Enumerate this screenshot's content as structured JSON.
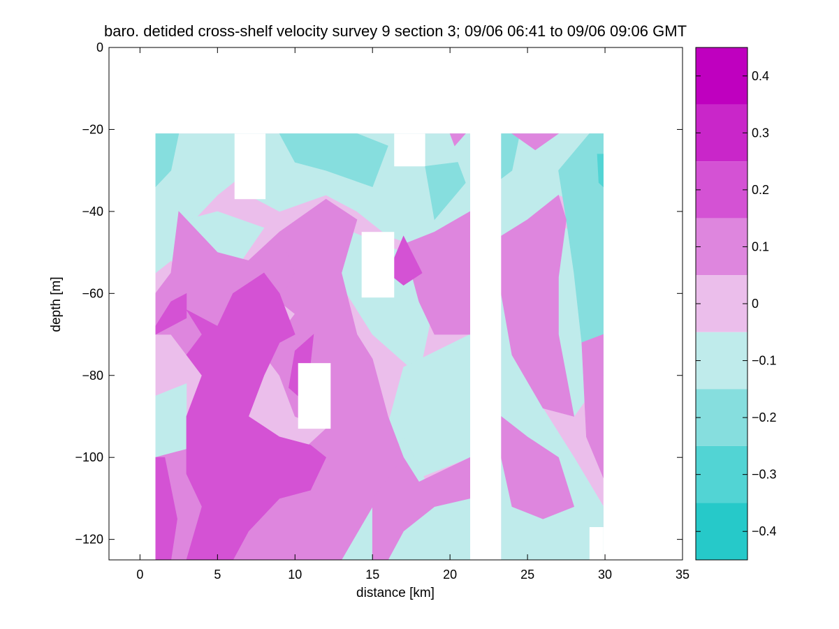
{
  "chart_data": {
    "type": "heatmap",
    "title": "baro. detided cross-shelf velocity survey 9 section 3; 09/06 06:41 to 09/06 09:06 GMT",
    "xlabel": "distance [km]",
    "ylabel": "depth [m]",
    "xlim": [
      -2,
      35
    ],
    "ylim": [
      -125,
      0
    ],
    "x_ticks": [
      0,
      5,
      10,
      15,
      20,
      25,
      30,
      35
    ],
    "y_ticks": [
      0,
      -20,
      -40,
      -60,
      -80,
      -100,
      -120
    ],
    "colorbar": {
      "range": [
        -0.45,
        0.45
      ],
      "ticks": [
        0.4,
        0.3,
        0.2,
        0.1,
        0,
        -0.1,
        -0.2,
        -0.3,
        -0.4
      ],
      "levels": [
        {
          "from": 0.35,
          "to": 0.45,
          "color": "#bf00bf"
        },
        {
          "from": 0.25,
          "to": 0.35,
          "color": "#c926c9"
        },
        {
          "from": 0.15,
          "to": 0.25,
          "color": "#d452d4"
        },
        {
          "from": 0.05,
          "to": 0.15,
          "color": "#de86de"
        },
        {
          "from": -0.05,
          "to": 0.05,
          "color": "#ebbeeb"
        },
        {
          "from": -0.15,
          "to": -0.05,
          "color": "#bfebeb"
        },
        {
          "from": -0.25,
          "to": -0.15,
          "color": "#86dede"
        },
        {
          "from": -0.35,
          "to": -0.25,
          "color": "#52d4d4"
        },
        {
          "from": -0.45,
          "to": -0.35,
          "color": "#26c9c9"
        }
      ]
    },
    "data_sections": [
      {
        "x": [
          1,
          21.3
        ],
        "y": [
          -125,
          -21
        ]
      },
      {
        "x": [
          23.3,
          29.9
        ],
        "y": [
          -125,
          -21
        ]
      }
    ],
    "gaps": [
      {
        "x": [
          6.1,
          8.1
        ],
        "y": [
          -37,
          -21
        ]
      },
      {
        "x": [
          16.4,
          18.4
        ],
        "y": [
          -29,
          -21
        ]
      },
      {
        "x": [
          14.3,
          16.4
        ],
        "y": [
          -61,
          -45
        ]
      },
      {
        "x": [
          10.2,
          12.3
        ],
        "y": [
          -93,
          -77
        ]
      },
      {
        "x": [
          29.0,
          29.9
        ],
        "y": [
          -125,
          -117
        ]
      }
    ],
    "regions": [
      {
        "level": -0.1,
        "points": [
          [
            1,
            -21
          ],
          [
            6,
            -21
          ],
          [
            7,
            -30
          ],
          [
            5,
            -36
          ],
          [
            3,
            -44
          ],
          [
            1,
            -45
          ]
        ]
      },
      {
        "level": -0.1,
        "points": [
          [
            6,
            -21
          ],
          [
            21.3,
            -21
          ],
          [
            21.3,
            -55
          ],
          [
            19,
            -50
          ],
          [
            16,
            -46
          ],
          [
            14,
            -40
          ],
          [
            12,
            -36
          ],
          [
            9,
            -40
          ],
          [
            7,
            -36
          ]
        ]
      },
      {
        "level": -0.1,
        "points": [
          [
            1,
            -44
          ],
          [
            5,
            -40
          ],
          [
            8,
            -44
          ],
          [
            6,
            -55
          ],
          [
            4,
            -58
          ],
          [
            2,
            -52
          ],
          [
            1,
            -55
          ]
        ]
      },
      {
        "level": -0.1,
        "points": [
          [
            13,
            -44
          ],
          [
            17,
            -50
          ],
          [
            19,
            -62
          ],
          [
            18,
            -80
          ],
          [
            15,
            -70
          ],
          [
            13,
            -58
          ]
        ]
      },
      {
        "level": -0.1,
        "points": [
          [
            17,
            -78
          ],
          [
            21.3,
            -70
          ],
          [
            21.3,
            -100
          ],
          [
            18,
            -105
          ],
          [
            16,
            -92
          ]
        ]
      },
      {
        "level": -0.1,
        "points": [
          [
            13,
            -125
          ],
          [
            15,
            -110
          ],
          [
            17,
            -95
          ],
          [
            19,
            -110
          ],
          [
            21.3,
            -105
          ],
          [
            21.3,
            -125
          ]
        ]
      },
      {
        "level": -0.1,
        "points": [
          [
            1,
            -85
          ],
          [
            3,
            -82
          ],
          [
            3,
            -98
          ],
          [
            1,
            -100
          ]
        ]
      },
      {
        "level": -0.1,
        "points": [
          [
            23.3,
            -21
          ],
          [
            29.9,
            -21
          ],
          [
            29.9,
            -40
          ],
          [
            27,
            -36
          ],
          [
            25,
            -42
          ],
          [
            23.3,
            -46
          ]
        ]
      },
      {
        "level": -0.1,
        "points": [
          [
            27,
            -44
          ],
          [
            29.9,
            -45
          ],
          [
            29.9,
            -80
          ],
          [
            28,
            -90
          ],
          [
            27,
            -70
          ]
        ]
      },
      {
        "level": -0.1,
        "points": [
          [
            23.3,
            -60
          ],
          [
            24,
            -75
          ],
          [
            26,
            -88
          ],
          [
            28,
            -100
          ],
          [
            29.9,
            -112
          ],
          [
            29.9,
            -125
          ],
          [
            23.3,
            -125
          ]
        ]
      },
      {
        "level": -0.2,
        "points": [
          [
            1,
            -21
          ],
          [
            2.5,
            -21
          ],
          [
            2,
            -30
          ],
          [
            1,
            -34
          ]
        ]
      },
      {
        "level": -0.2,
        "points": [
          [
            9,
            -21
          ],
          [
            14,
            -21
          ],
          [
            16,
            -24
          ],
          [
            15,
            -34
          ],
          [
            12,
            -30
          ],
          [
            10,
            -28
          ]
        ]
      },
      {
        "level": -0.2,
        "points": [
          [
            18.4,
            -29
          ],
          [
            20.5,
            -28
          ],
          [
            21,
            -33
          ],
          [
            19,
            -42
          ]
        ]
      },
      {
        "level": -0.2,
        "points": [
          [
            23.3,
            -21
          ],
          [
            24.5,
            -21
          ],
          [
            24,
            -30
          ],
          [
            23.3,
            -32
          ]
        ]
      },
      {
        "level": -0.2,
        "points": [
          [
            27,
            -30
          ],
          [
            29,
            -21
          ],
          [
            29.9,
            -21
          ],
          [
            29.9,
            -70
          ],
          [
            28.5,
            -72
          ],
          [
            28,
            -55
          ],
          [
            27.5,
            -42
          ]
        ]
      },
      {
        "level": -0.3,
        "points": [
          [
            29.5,
            -26
          ],
          [
            29.9,
            -26
          ],
          [
            29.9,
            -34
          ],
          [
            29.6,
            -33
          ]
        ]
      },
      {
        "level": 0.1,
        "points": [
          [
            2.5,
            -40
          ],
          [
            5,
            -50
          ],
          [
            7,
            -52
          ],
          [
            9,
            -45
          ],
          [
            10,
            -55
          ],
          [
            9,
            -62
          ],
          [
            7,
            -70
          ],
          [
            5,
            -78
          ],
          [
            3,
            -75
          ],
          [
            2,
            -70
          ],
          [
            1,
            -70
          ],
          [
            1,
            -60
          ],
          [
            2,
            -55
          ]
        ]
      },
      {
        "level": 0.1,
        "points": [
          [
            9,
            -45
          ],
          [
            12,
            -37
          ],
          [
            14,
            -42
          ],
          [
            13,
            -55
          ],
          [
            14,
            -70
          ],
          [
            15,
            -76
          ],
          [
            16,
            -90
          ],
          [
            17,
            -100
          ],
          [
            15,
            -112
          ],
          [
            13,
            -125
          ],
          [
            5,
            -125
          ],
          [
            7,
            -110
          ],
          [
            10,
            -100
          ],
          [
            12,
            -93
          ],
          [
            10,
            -90
          ],
          [
            9,
            -80
          ],
          [
            8,
            -75
          ],
          [
            10,
            -65
          ],
          [
            9,
            -62
          ],
          [
            10,
            -55
          ]
        ]
      },
      {
        "level": 0.1,
        "points": [
          [
            17,
            -48
          ],
          [
            19,
            -45
          ],
          [
            21.3,
            -40
          ],
          [
            21.3,
            -70
          ],
          [
            19,
            -70
          ],
          [
            18,
            -62
          ]
        ]
      },
      {
        "level": 0.1,
        "points": [
          [
            15,
            -110
          ],
          [
            17,
            -100
          ],
          [
            18,
            -106
          ],
          [
            21.3,
            -100
          ],
          [
            21.3,
            -110
          ],
          [
            19,
            -112
          ],
          [
            17,
            -118
          ],
          [
            16,
            -125
          ],
          [
            15,
            -125
          ]
        ]
      },
      {
        "level": 0.1,
        "points": [
          [
            1,
            -100
          ],
          [
            3,
            -98
          ],
          [
            4,
            -112
          ],
          [
            3,
            -125
          ],
          [
            1,
            -125
          ]
        ]
      },
      {
        "level": 0.1,
        "points": [
          [
            23.3,
            -46
          ],
          [
            25,
            -42
          ],
          [
            27,
            -36
          ],
          [
            27.5,
            -42
          ],
          [
            27,
            -56
          ],
          [
            27,
            -70
          ],
          [
            28,
            -90
          ],
          [
            26,
            -88
          ],
          [
            24,
            -75
          ],
          [
            23.3,
            -60
          ]
        ]
      },
      {
        "level": 0.1,
        "points": [
          [
            23.3,
            -90
          ],
          [
            25,
            -95
          ],
          [
            27,
            -100
          ],
          [
            28,
            -112
          ],
          [
            26,
            -115
          ],
          [
            24,
            -112
          ],
          [
            23.3,
            -100
          ]
        ]
      },
      {
        "level": 0.1,
        "points": [
          [
            28.5,
            -72
          ],
          [
            29.9,
            -70
          ],
          [
            29.9,
            -105
          ],
          [
            28.8,
            -95
          ]
        ]
      },
      {
        "level": 0.1,
        "points": [
          [
            24,
            -21
          ],
          [
            27,
            -21
          ],
          [
            25.5,
            -25
          ]
        ]
      },
      {
        "level": 0.1,
        "points": [
          [
            20,
            -21
          ],
          [
            21,
            -21
          ],
          [
            20.3,
            -24
          ]
        ]
      },
      {
        "level": 0.2,
        "points": [
          [
            1,
            -68
          ],
          [
            2,
            -62
          ],
          [
            3,
            -60
          ],
          [
            3,
            -66
          ],
          [
            1,
            -70
          ]
        ]
      },
      {
        "level": 0.2,
        "points": [
          [
            3,
            -64
          ],
          [
            5,
            -68
          ],
          [
            6,
            -60
          ],
          [
            8,
            -55
          ],
          [
            9,
            -60
          ],
          [
            10,
            -70
          ],
          [
            9,
            -72
          ],
          [
            8,
            -80
          ],
          [
            7,
            -90
          ],
          [
            9,
            -95
          ],
          [
            11,
            -97
          ],
          [
            12,
            -100
          ],
          [
            11,
            -108
          ],
          [
            9,
            -110
          ],
          [
            7,
            -118
          ],
          [
            6,
            -125
          ],
          [
            3,
            -125
          ],
          [
            4,
            -112
          ],
          [
            3,
            -104
          ],
          [
            3,
            -90
          ],
          [
            4,
            -80
          ],
          [
            3,
            -75
          ],
          [
            4,
            -70
          ]
        ]
      },
      {
        "level": 0.2,
        "points": [
          [
            16,
            -55
          ],
          [
            17,
            -46
          ],
          [
            18.2,
            -55
          ],
          [
            17,
            -58
          ]
        ]
      },
      {
        "level": 0.2,
        "points": [
          [
            9.6,
            -83
          ],
          [
            10,
            -74
          ],
          [
            11.2,
            -70
          ],
          [
            11,
            -77
          ],
          [
            10.2,
            -85
          ]
        ]
      },
      {
        "level": 0.2,
        "points": [
          [
            1,
            -100
          ],
          [
            1.6,
            -100
          ],
          [
            2.4,
            -115
          ],
          [
            2,
            -125
          ],
          [
            1,
            -125
          ]
        ]
      }
    ]
  }
}
